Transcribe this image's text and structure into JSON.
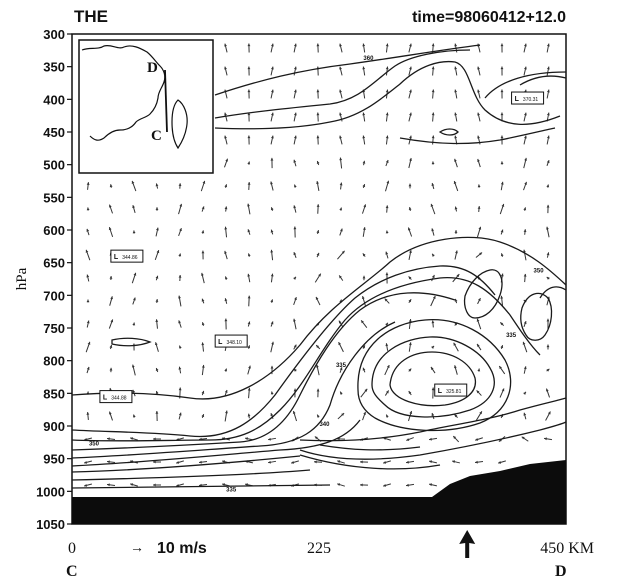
{
  "chart_data": {
    "type": "contour",
    "title": "THE",
    "time_label": "time=98060412+12.0",
    "ylabel": "hPa",
    "y_ticks": [
      300,
      350,
      400,
      450,
      500,
      550,
      600,
      650,
      700,
      750,
      800,
      850,
      900,
      950,
      1000,
      1050
    ],
    "ylim": [
      300,
      1050
    ],
    "y_scale": "reversed-linear",
    "x_ticks": [
      {
        "value": 0,
        "label": "0"
      },
      {
        "value": 225,
        "label": "225"
      },
      {
        "value": 450,
        "label": "450 KM"
      }
    ],
    "xlim": [
      0,
      450
    ],
    "endpoints": {
      "start": "C",
      "end": "D"
    },
    "vector_reference": {
      "arrow": "→",
      "label": "10 m/s"
    },
    "marker_arrow_x_km": 360,
    "contour_labels": [
      {
        "x": 270,
        "y": 340,
        "text": "360"
      },
      {
        "x": 425,
        "y": 665,
        "text": "350"
      },
      {
        "x": 400,
        "y": 764,
        "text": "335"
      },
      {
        "x": 245,
        "y": 810,
        "text": "335"
      },
      {
        "x": 230,
        "y": 900,
        "text": "340"
      },
      {
        "x": 20,
        "y": 930,
        "text": "350"
      },
      {
        "x": 145,
        "y": 1000,
        "text": "335"
      }
    ],
    "lows": [
      {
        "x": 415,
        "y": 398,
        "text": "370.31"
      },
      {
        "x": 50,
        "y": 640,
        "text": "344.86"
      },
      {
        "x": 145,
        "y": 770,
        "text": "348.10"
      },
      {
        "x": 40,
        "y": 855,
        "text": "344.88"
      },
      {
        "x": 345,
        "y": 845,
        "text": "325.81"
      }
    ],
    "inset_map": {
      "labels": [
        "D",
        "C"
      ]
    }
  }
}
